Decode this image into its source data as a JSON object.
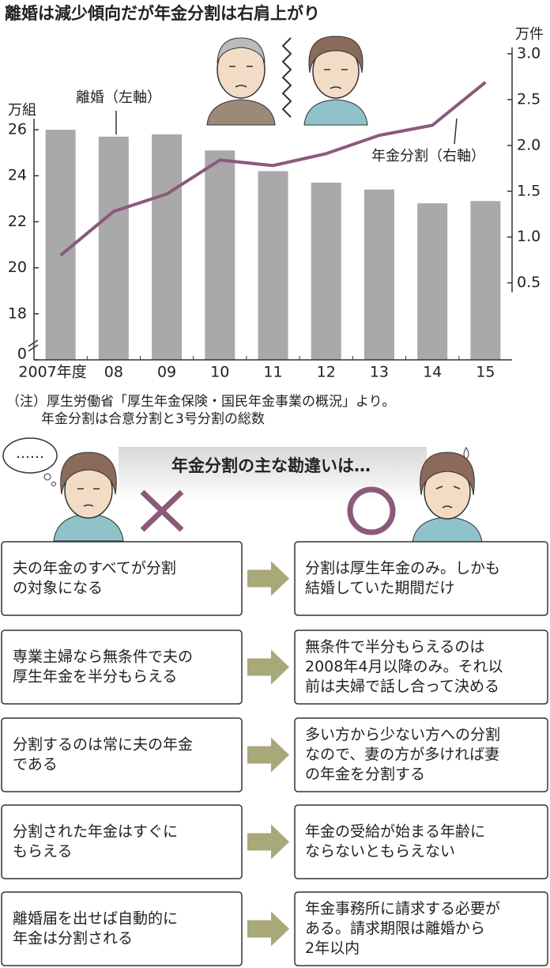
{
  "title": "離婚は減少傾向だが年金分割は右肩上がり",
  "chart_data": {
    "type": "bar",
    "categories": [
      "2007年度",
      "08",
      "09",
      "10",
      "11",
      "12",
      "13",
      "14",
      "15"
    ],
    "y_label": "万組",
    "y2_label": "万件",
    "series": [
      {
        "name": "離婚（左軸）",
        "type": "bar",
        "color": "#a9a9a9",
        "values": [
          26.0,
          25.7,
          25.8,
          25.1,
          24.2,
          23.7,
          23.4,
          22.8,
          22.9
        ]
      },
      {
        "name": "年金分割（右軸）",
        "type": "line",
        "axis": "y2",
        "color": "#8b5a7a",
        "values": [
          0.8,
          1.28,
          1.47,
          1.84,
          1.78,
          1.91,
          2.11,
          2.22,
          2.69
        ]
      }
    ],
    "ylim": [
      0,
      29.3
    ],
    "y_break": 16,
    "yticks": [
      0,
      18,
      20,
      22,
      24,
      26
    ],
    "y2lim": [
      -0.34,
      3.0
    ],
    "y2ticks": [
      {
        "value": 3,
        "label": "3.0"
      },
      2.5,
      {
        "value": 2,
        "label": "2.0"
      },
      1.5,
      {
        "value": 1,
        "label": "1.0"
      },
      0.5
    ]
  },
  "note": [
    "（注）厚生労働省「厚生年金保険・国民年金事業の概況」より。",
    "年金分割は合意分割と3号分割の総数"
  ],
  "misconceptions": {
    "heading": "年金分割の主な勘違いは…",
    "bubble": "……",
    "rows": [
      {
        "myth": [
          "夫の年金のすべてが分割",
          "の対象になる"
        ],
        "fact": [
          "分割は厚生年金のみ。しかも",
          "結婚していた期間だけ"
        ]
      },
      {
        "myth": [
          "専業主婦なら無条件で夫の",
          "厚生年金を半分もらえる"
        ],
        "fact": [
          "無条件で半分もらえるのは",
          "2008年4月以降のみ。それ以",
          "前は夫婦で話し合って決める"
        ]
      },
      {
        "myth": [
          "分割するのは常に夫の年金",
          "である"
        ],
        "fact": [
          "多い方から少ない方への分割",
          "なので、妻の方が多ければ妻",
          "の年金を分割する"
        ]
      },
      {
        "myth": [
          "分割された年金はすぐに",
          "もらえる"
        ],
        "fact": [
          "年金の受給が始まる年齢に",
          "ならないともらえない"
        ]
      },
      {
        "myth": [
          "離婚届を出せば自動的に",
          "年金は分割される"
        ],
        "fact": [
          "年金事務所に請求する必要が",
          "ある。請求期限は離婚から",
          "2年以内"
        ]
      }
    ]
  }
}
